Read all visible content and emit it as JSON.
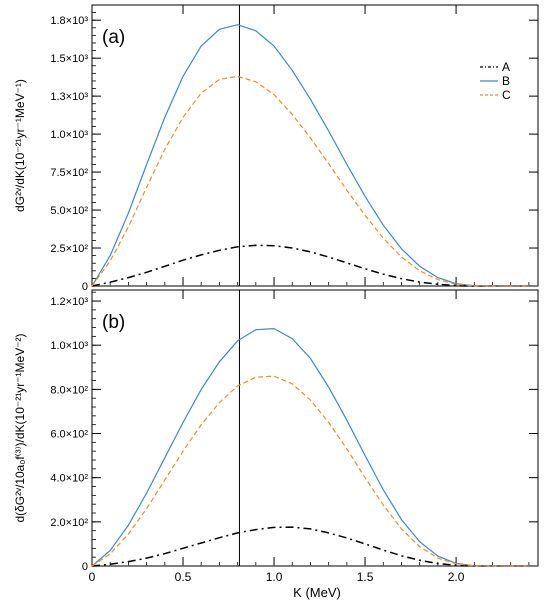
{
  "figure": {
    "xlabel": "K (MeV)"
  },
  "chart_data": [
    {
      "type": "line",
      "panel_label": "(a)",
      "ylabel": "dG²ᵛ/dK(10⁻²¹yr⁻¹MeV⁻¹)",
      "xlim": [
        0,
        2.45
      ],
      "ylim": [
        0,
        1850
      ],
      "x_ticks": [
        {
          "value": 0,
          "label": "0"
        },
        {
          "value": 0.5,
          "label": "0.5"
        },
        {
          "value": 1.0,
          "label": "1.0"
        },
        {
          "value": 1.5,
          "label": "1.5"
        },
        {
          "value": 2.0,
          "label": "2.0"
        }
      ],
      "x_tick_labels_shown": false,
      "y_ticks": [
        {
          "value": 0,
          "label": "0"
        },
        {
          "value": 250,
          "label": "2.5×10²"
        },
        {
          "value": 500,
          "label": "5.0×10²"
        },
        {
          "value": 750,
          "label": "7.5×10²"
        },
        {
          "value": 1000,
          "label": "1.0×10³"
        },
        {
          "value": 1250,
          "label": "1.3×10³"
        },
        {
          "value": 1500,
          "label": "1.5×10³"
        },
        {
          "value": 1750,
          "label": "1.8×10³"
        }
      ],
      "vline_x": 0.81,
      "legend": {
        "placement": "top-right"
      },
      "series": [
        {
          "name": "A",
          "color": "#000000",
          "dash": "dashdot",
          "x": [
            0,
            0.1,
            0.2,
            0.3,
            0.4,
            0.5,
            0.6,
            0.7,
            0.8,
            0.9,
            1.0,
            1.1,
            1.2,
            1.3,
            1.4,
            1.5,
            1.6,
            1.7,
            1.8,
            1.9,
            2.0,
            2.1,
            2.2,
            2.3,
            2.4
          ],
          "y": [
            0,
            25,
            55,
            90,
            130,
            170,
            205,
            235,
            258,
            268,
            265,
            250,
            225,
            190,
            152,
            113,
            78,
            48,
            26,
            11,
            3,
            0,
            0,
            0,
            0
          ]
        },
        {
          "name": "B",
          "color": "#3f87c9",
          "dash": "solid",
          "x": [
            0,
            0.1,
            0.2,
            0.3,
            0.4,
            0.5,
            0.6,
            0.7,
            0.8,
            0.9,
            1.0,
            1.1,
            1.2,
            1.3,
            1.4,
            1.5,
            1.6,
            1.7,
            1.8,
            1.9,
            2.0,
            2.1,
            2.2,
            2.3,
            2.4
          ],
          "y": [
            0,
            200,
            480,
            800,
            1110,
            1380,
            1580,
            1690,
            1720,
            1680,
            1580,
            1420,
            1230,
            1020,
            800,
            590,
            400,
            245,
            130,
            55,
            15,
            2,
            0,
            0,
            0
          ]
        },
        {
          "name": "C",
          "color": "#f08c2a",
          "dash": "dashed",
          "x": [
            0,
            0.1,
            0.2,
            0.3,
            0.4,
            0.5,
            0.6,
            0.7,
            0.8,
            0.9,
            1.0,
            1.1,
            1.2,
            1.3,
            1.4,
            1.5,
            1.6,
            1.7,
            1.8,
            1.9,
            2.0,
            2.1,
            2.2,
            2.3,
            2.4
          ],
          "y": [
            0,
            165,
            390,
            650,
            900,
            1110,
            1270,
            1360,
            1380,
            1345,
            1260,
            1130,
            975,
            805,
            630,
            465,
            315,
            190,
            100,
            42,
            11,
            1,
            0,
            0,
            0
          ]
        }
      ]
    },
    {
      "type": "line",
      "panel_label": "(b)",
      "ylabel": "d(δG²ᵛ/10a₀f⁽³⁾)/dK(10⁻²¹yr⁻¹MeV⁻²)",
      "xlim": [
        0,
        2.45
      ],
      "ylim": [
        0,
        1250
      ],
      "x_ticks": [
        {
          "value": 0,
          "label": "0"
        },
        {
          "value": 0.5,
          "label": "0.5"
        },
        {
          "value": 1.0,
          "label": "1.0"
        },
        {
          "value": 1.5,
          "label": "1.5"
        },
        {
          "value": 2.0,
          "label": "2.0"
        }
      ],
      "x_tick_labels_shown": true,
      "y_ticks": [
        {
          "value": 0,
          "label": "0"
        },
        {
          "value": 200,
          "label": "2.0×10²"
        },
        {
          "value": 400,
          "label": "4.0×10²"
        },
        {
          "value": 600,
          "label": "6.0×10²"
        },
        {
          "value": 800,
          "label": "8.0×10²"
        },
        {
          "value": 1000,
          "label": "1.0×10³"
        },
        {
          "value": 1200,
          "label": "1.2×10³"
        }
      ],
      "vline_x": 0.81,
      "series": [
        {
          "name": "A",
          "color": "#000000",
          "dash": "dashdot",
          "x": [
            0,
            0.1,
            0.2,
            0.3,
            0.4,
            0.5,
            0.6,
            0.7,
            0.8,
            0.9,
            1.0,
            1.1,
            1.2,
            1.3,
            1.4,
            1.5,
            1.6,
            1.7,
            1.8,
            1.9,
            2.0,
            2.1,
            2.2,
            2.3,
            2.4
          ],
          "y": [
            0,
            8,
            20,
            36,
            56,
            80,
            104,
            128,
            150,
            165,
            175,
            176,
            168,
            150,
            127,
            100,
            72,
            46,
            26,
            11,
            3,
            0,
            0,
            0,
            0
          ]
        },
        {
          "name": "B",
          "color": "#3f87c9",
          "dash": "solid",
          "x": [
            0,
            0.1,
            0.2,
            0.3,
            0.4,
            0.5,
            0.6,
            0.7,
            0.8,
            0.9,
            1.0,
            1.1,
            1.2,
            1.3,
            1.4,
            1.5,
            1.6,
            1.7,
            1.8,
            1.9,
            2.0,
            2.1,
            2.2,
            2.3,
            2.4
          ],
          "y": [
            0,
            70,
            185,
            330,
            490,
            650,
            800,
            925,
            1020,
            1070,
            1075,
            1030,
            940,
            810,
            660,
            500,
            345,
            210,
            110,
            45,
            12,
            1,
            0,
            0,
            0
          ]
        },
        {
          "name": "C",
          "color": "#f08c2a",
          "dash": "dashed",
          "x": [
            0,
            0.1,
            0.2,
            0.3,
            0.4,
            0.5,
            0.6,
            0.7,
            0.8,
            0.9,
            1.0,
            1.1,
            1.2,
            1.3,
            1.4,
            1.5,
            1.6,
            1.7,
            1.8,
            1.9,
            2.0,
            2.1,
            2.2,
            2.3,
            2.4
          ],
          "y": [
            0,
            55,
            145,
            260,
            390,
            520,
            640,
            740,
            815,
            855,
            860,
            825,
            752,
            650,
            530,
            400,
            276,
            168,
            88,
            36,
            10,
            1,
            0,
            0,
            0
          ]
        }
      ]
    }
  ]
}
